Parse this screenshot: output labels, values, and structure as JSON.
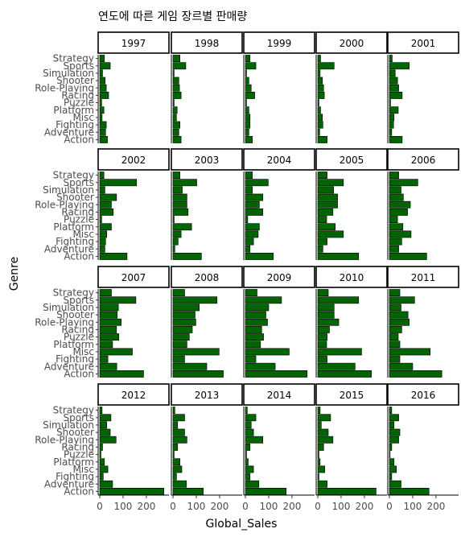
{
  "chart_data": {
    "type": "bar",
    "orientation": "horizontal",
    "faceted": true,
    "title": "연도에 따른 게임 장르별 판매량",
    "xlabel": "Global_Sales",
    "ylabel": "Genre",
    "xlim": [
      0,
      290
    ],
    "xticks": [
      0,
      100,
      200
    ],
    "categories": [
      "Action",
      "Adventure",
      "Fighting",
      "Misc",
      "Platform",
      "Puzzle",
      "Racing",
      "Role-Playing",
      "Shooter",
      "Simulation",
      "Sports",
      "Strategy"
    ],
    "bar_color": "#006400",
    "panels": [
      {
        "year": "1997",
        "values": [
          33,
          25,
          28,
          10,
          18,
          8,
          38,
          28,
          23,
          12,
          45,
          20
        ]
      },
      {
        "year": "1998",
        "values": [
          35,
          25,
          30,
          15,
          18,
          5,
          35,
          28,
          25,
          5,
          55,
          30
        ]
      },
      {
        "year": "1999",
        "values": [
          30,
          15,
          20,
          20,
          15,
          5,
          40,
          25,
          15,
          5,
          45,
          20
        ]
      },
      {
        "year": "2000",
        "values": [
          40,
          8,
          22,
          20,
          12,
          5,
          28,
          25,
          20,
          10,
          70,
          12
        ]
      },
      {
        "year": "2001",
        "values": [
          55,
          10,
          18,
          20,
          38,
          5,
          55,
          40,
          35,
          25,
          85,
          12
        ]
      },
      {
        "year": "2002",
        "values": [
          117,
          22,
          25,
          30,
          50,
          8,
          58,
          50,
          72,
          22,
          158,
          18
        ]
      },
      {
        "year": "2003",
        "values": [
          122,
          8,
          22,
          35,
          80,
          5,
          65,
          60,
          60,
          40,
          102,
          30
        ]
      },
      {
        "year": "2004",
        "values": [
          120,
          20,
          35,
          55,
          60,
          10,
          75,
          60,
          75,
          30,
          98,
          30
        ]
      },
      {
        "year": "2005",
        "values": [
          175,
          22,
          40,
          110,
          75,
          38,
          65,
          85,
          85,
          68,
          110,
          40
        ]
      },
      {
        "year": "2006",
        "values": [
          160,
          40,
          53,
          93,
          58,
          35,
          78,
          90,
          60,
          50,
          122,
          40
        ]
      },
      {
        "year": "2007",
        "values": [
          188,
          73,
          35,
          140,
          55,
          82,
          72,
          92,
          75,
          80,
          155,
          50
        ]
      },
      {
        "year": "2008",
        "values": [
          216,
          145,
          50,
          198,
          60,
          70,
          83,
          98,
          95,
          113,
          189,
          50
        ]
      },
      {
        "year": "2009",
        "values": [
          265,
          128,
          45,
          188,
          65,
          78,
          70,
          95,
          88,
          100,
          155,
          50
        ]
      },
      {
        "year": "2010",
        "values": [
          230,
          160,
          40,
          188,
          38,
          40,
          50,
          90,
          70,
          70,
          175,
          45
        ]
      },
      {
        "year": "2011",
        "values": [
          225,
          100,
          45,
          175,
          45,
          38,
          53,
          85,
          80,
          50,
          108,
          45
        ]
      },
      {
        "year": "2012",
        "values": [
          275,
          55,
          15,
          35,
          20,
          5,
          12,
          70,
          45,
          30,
          48,
          10
        ]
      },
      {
        "year": "2013",
        "values": [
          130,
          58,
          15,
          38,
          30,
          5,
          20,
          60,
          50,
          20,
          50,
          8
        ]
      },
      {
        "year": "2014",
        "values": [
          175,
          58,
          20,
          35,
          12,
          5,
          20,
          75,
          35,
          25,
          45,
          8
        ]
      },
      {
        "year": "2015",
        "values": [
          250,
          40,
          5,
          30,
          10,
          5,
          25,
          65,
          45,
          15,
          55,
          10
        ]
      },
      {
        "year": "2016",
        "values": [
          170,
          50,
          10,
          30,
          20,
          3,
          10,
          40,
          45,
          20,
          40,
          10
        ]
      }
    ]
  }
}
